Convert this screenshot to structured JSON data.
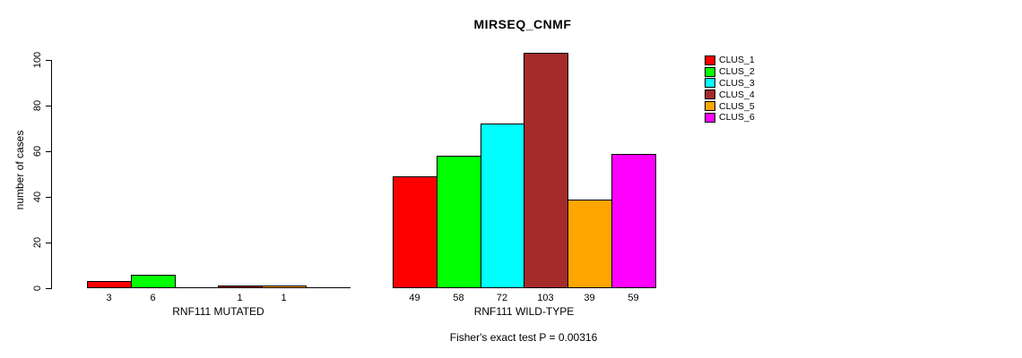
{
  "title": "MIRSEQ_CNMF",
  "y_axis": {
    "label": "number of cases",
    "ticks": [
      0,
      20,
      40,
      60,
      80,
      100
    ]
  },
  "legend": {
    "items": [
      {
        "label": "CLUS_1",
        "color": "#FF0000"
      },
      {
        "label": "CLUS_2",
        "color": "#00FF00"
      },
      {
        "label": "CLUS_3",
        "color": "#00FFFF"
      },
      {
        "label": "CLUS_4",
        "color": "#A52A2A"
      },
      {
        "label": "CLUS_5",
        "color": "#FFA500"
      },
      {
        "label": "CLUS_6",
        "color": "#FF00FF"
      }
    ]
  },
  "footer": {
    "fisher_text": "Fisher's exact test P = 0.00316"
  },
  "chart_data": {
    "type": "bar",
    "title": "MIRSEQ_CNMF",
    "xlabel": "",
    "ylabel": "number of cases",
    "ylim": [
      0,
      100
    ],
    "grid": false,
    "legend_position": "right",
    "categories": [
      "CLUS_1",
      "CLUS_2",
      "CLUS_3",
      "CLUS_4",
      "CLUS_5",
      "CLUS_6"
    ],
    "colors": [
      "#FF0000",
      "#00FF00",
      "#00FFFF",
      "#A52A2A",
      "#FFA500",
      "#FF00FF"
    ],
    "groups": [
      {
        "label": "RNF111 MUTATED",
        "values": [
          3,
          6,
          0,
          1,
          1,
          0
        ],
        "bar_labels": [
          "3",
          "6",
          "",
          "1",
          "1",
          ""
        ]
      },
      {
        "label": "RNF111 WILD-TYPE",
        "values": [
          49,
          58,
          72,
          103,
          39,
          59
        ],
        "bar_labels": [
          "49",
          "58",
          "72",
          "103",
          "39",
          "59"
        ]
      }
    ],
    "annotation": "Fisher's exact test P = 0.00316"
  }
}
